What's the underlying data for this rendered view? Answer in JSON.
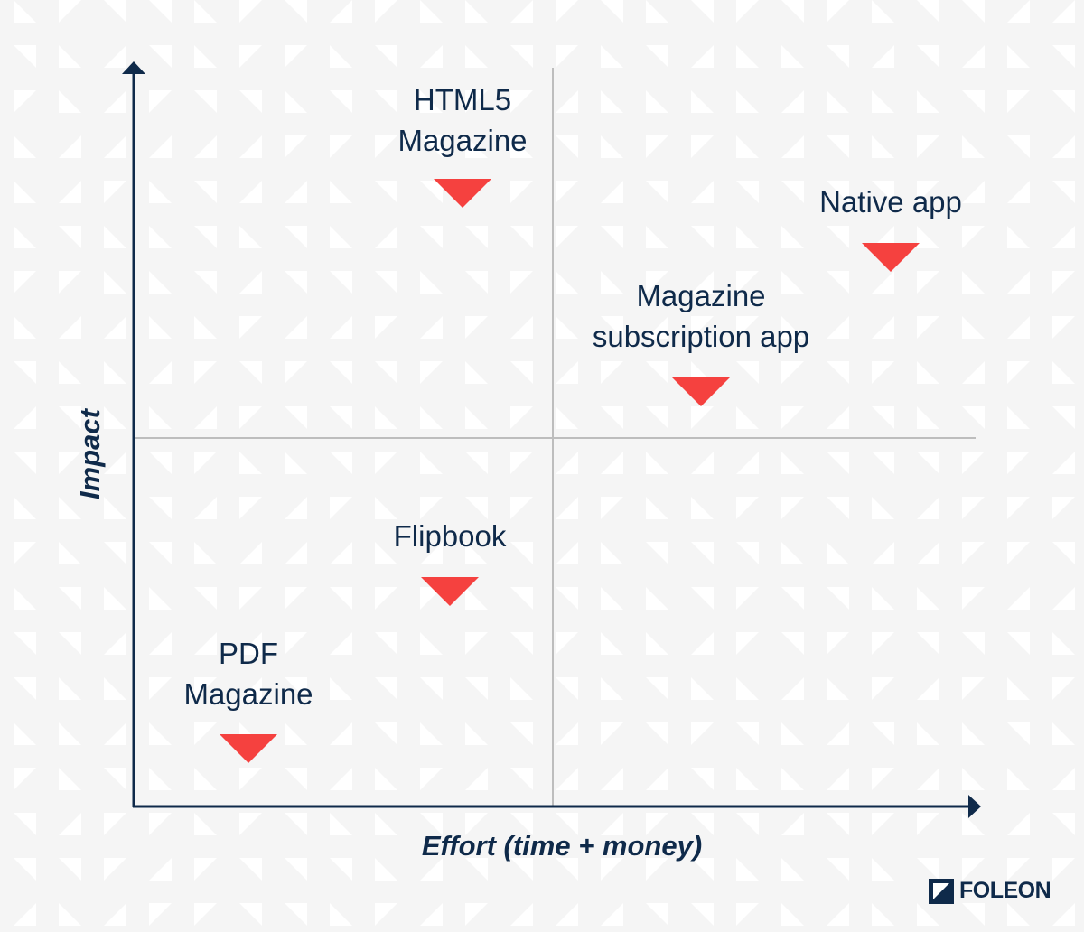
{
  "colors": {
    "axis": "#0f2a4a",
    "divider": "#bdbdbd",
    "marker": "#f5413f",
    "background": "#f5f5f5"
  },
  "axes": {
    "x_label": "Effort (time + money)",
    "y_label": "Impact"
  },
  "items": [
    {
      "label_lines": [
        "HTML5",
        "Magazine"
      ]
    },
    {
      "label_lines": [
        "Native app"
      ]
    },
    {
      "label_lines": [
        "Magazine",
        "subscription app"
      ]
    },
    {
      "label_lines": [
        "Flipbook"
      ]
    },
    {
      "label_lines": [
        "PDF",
        "Magazine"
      ]
    }
  ],
  "logo": {
    "text": "FOLEON"
  }
}
